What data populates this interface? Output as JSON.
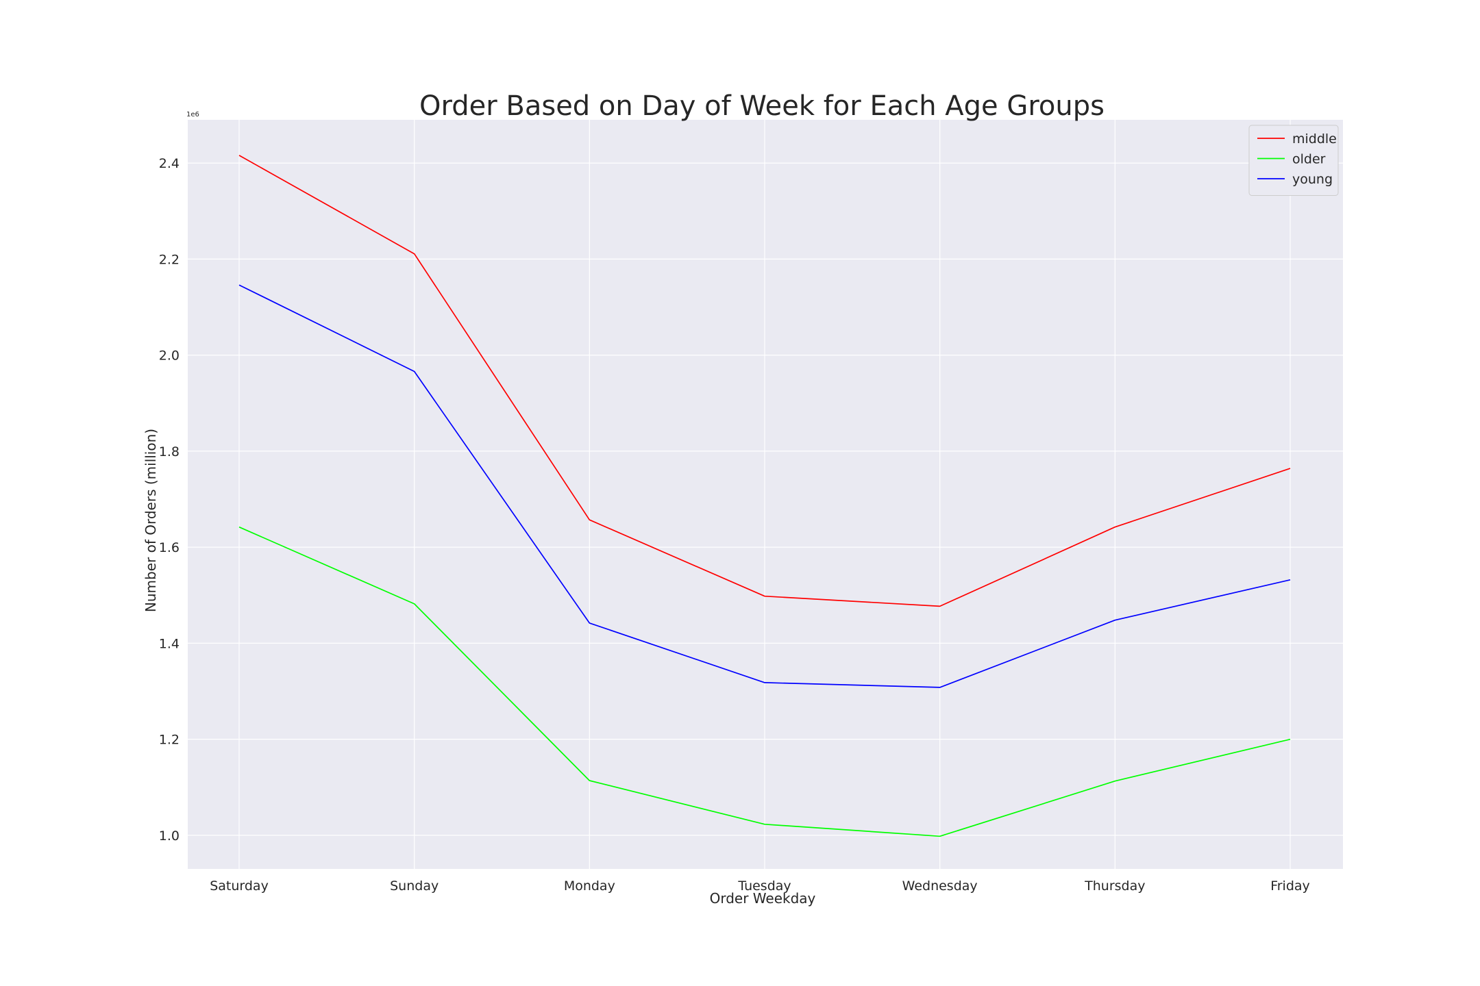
{
  "chart_data": {
    "type": "line",
    "title": "Order Based on Day of Week for Each Age Groups",
    "xlabel": "Order Weekday",
    "ylabel": "Number of Orders (million)",
    "y_offset_label": "1e6",
    "categories": [
      "Saturday",
      "Sunday",
      "Monday",
      "Tuesday",
      "Wednesday",
      "Thursday",
      "Friday"
    ],
    "series": [
      {
        "name": "middle",
        "color": "#ff0000",
        "values": [
          2416000,
          2211000,
          1657000,
          1498000,
          1477000,
          1642000,
          1764000
        ]
      },
      {
        "name": "older",
        "color": "#00ff00",
        "values": [
          1642000,
          1482000,
          1114000,
          1023000,
          998000,
          1113000,
          1200000
        ]
      },
      {
        "name": "young",
        "color": "#0000ff",
        "values": [
          2146000,
          1966000,
          1442000,
          1318000,
          1308000,
          1448000,
          1532000
        ]
      }
    ],
    "ylim": [
      930000,
      2490000
    ],
    "yticks": [
      1.0,
      1.2,
      1.4,
      1.6,
      1.8,
      2.0,
      2.2,
      2.4
    ],
    "grid": true,
    "legend_position": "top-right",
    "colors": {
      "plot_background": "#eaeaf2",
      "grid": "#ffffff",
      "text": "#262626"
    }
  }
}
